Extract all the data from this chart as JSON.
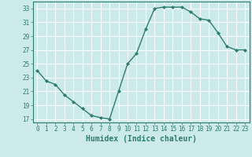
{
  "x": [
    0,
    1,
    2,
    3,
    4,
    5,
    6,
    7,
    8,
    9,
    10,
    11,
    12,
    13,
    14,
    15,
    16,
    17,
    18,
    19,
    20,
    21,
    22,
    23
  ],
  "y": [
    24.0,
    22.5,
    22.0,
    20.5,
    19.5,
    18.5,
    17.5,
    17.2,
    17.0,
    21.0,
    25.0,
    26.5,
    30.0,
    33.0,
    33.2,
    33.2,
    33.2,
    32.5,
    31.5,
    31.3,
    29.5,
    27.5,
    27.0,
    27.0
  ],
  "xlim": [
    -0.5,
    23.5
  ],
  "ylim": [
    16.5,
    34.0
  ],
  "yticks": [
    17,
    19,
    21,
    23,
    25,
    27,
    29,
    31,
    33
  ],
  "xticks": [
    0,
    1,
    2,
    3,
    4,
    5,
    6,
    7,
    8,
    9,
    10,
    11,
    12,
    13,
    14,
    15,
    16,
    17,
    18,
    19,
    20,
    21,
    22,
    23
  ],
  "xlabel": "Humidex (Indice chaleur)",
  "line_color": "#2e7d6e",
  "marker": "D",
  "marker_size": 2.0,
  "bg_color": "#cceaea",
  "grid_color": "#ffffff",
  "axis_color": "#2e7d6e",
  "tick_color": "#2e7d6e",
  "xlabel_color": "#2e7d6e",
  "xlabel_fontsize": 7.0,
  "tick_fontsize": 5.5,
  "linewidth": 1.0
}
